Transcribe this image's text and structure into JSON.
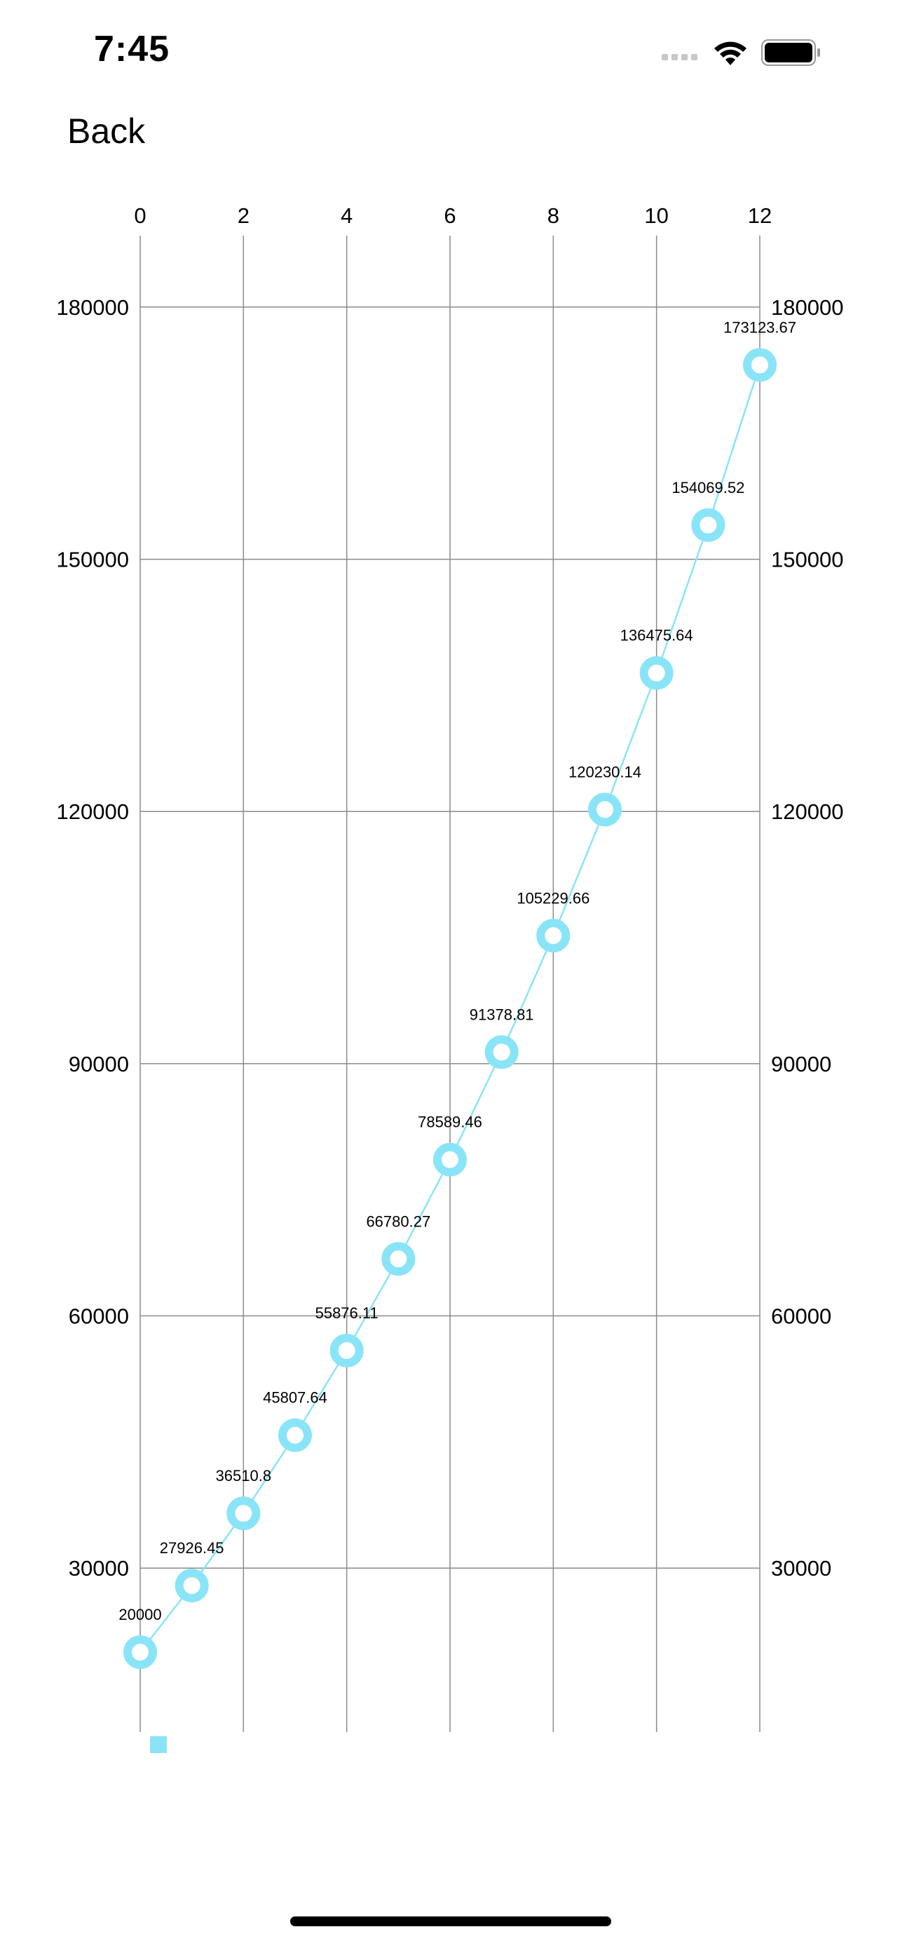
{
  "status_bar": {
    "time": "7:45",
    "icons": [
      "signal-dots-icon",
      "wifi-icon",
      "battery-icon"
    ]
  },
  "nav": {
    "back_label": "Back"
  },
  "colors": {
    "series": "#8AE4F7",
    "grid": "#8a8a8a",
    "text": "#000000"
  },
  "chart_data": {
    "type": "line",
    "x_ticks": [
      0,
      2,
      4,
      6,
      8,
      10,
      12
    ],
    "y_ticks": [
      30000,
      60000,
      90000,
      120000,
      150000,
      180000
    ],
    "y_ticks_right": [
      30000,
      60000,
      90000,
      120000,
      150000,
      180000
    ],
    "xlim": [
      0,
      12
    ],
    "ylim": [
      10500,
      188500
    ],
    "x_axis_position": "top",
    "y_axis_position": "left-and-right",
    "grid": true,
    "series": [
      {
        "x": [
          0,
          1,
          2,
          3,
          4,
          5,
          6,
          7,
          8,
          9,
          10,
          11,
          12
        ],
        "values": [
          20000,
          27926.45,
          36510.8,
          45807.64,
          55876.11,
          66780.27,
          78589.46,
          91378.81,
          105229.66,
          120230.14,
          136475.64,
          154069.52,
          173123.67
        ],
        "labels": [
          "20000",
          "27926.45",
          "36510.8",
          "45807.64",
          "55876.11",
          "66780.27",
          "78589.46",
          "91378.81",
          "105229.66",
          "120230.14",
          "136475.64",
          "154069.52",
          "173123.67"
        ]
      }
    ],
    "legend": {
      "position": "bottom-left",
      "entries": [
        ""
      ]
    }
  }
}
